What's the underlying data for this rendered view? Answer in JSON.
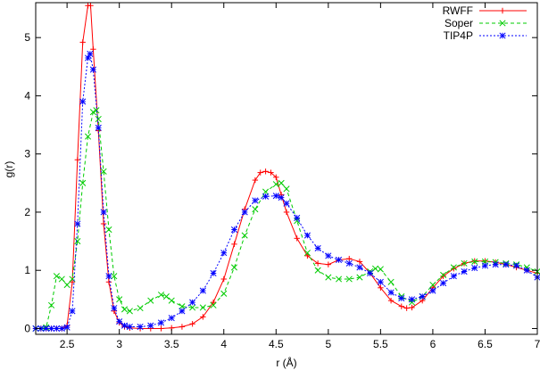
{
  "chart_data": {
    "type": "line",
    "title": "",
    "xlabel": "r (Å)",
    "ylabel": "g(r)",
    "xlim": [
      2.2,
      7.0
    ],
    "ylim": [
      -0.1,
      5.6
    ],
    "xticks": [
      "2.5",
      "3",
      "3.5",
      "4",
      "4.5",
      "5",
      "5.5",
      "6",
      "6.5",
      "7"
    ],
    "xtick_values": [
      2.5,
      3.0,
      3.5,
      4.0,
      4.5,
      5.0,
      5.5,
      6.0,
      6.5,
      7.0
    ],
    "yticks": [
      "0",
      "1",
      "2",
      "3",
      "4",
      "5"
    ],
    "ytick_values": [
      0,
      1,
      2,
      3,
      4,
      5
    ],
    "grid": false,
    "legend_position": "top-right",
    "series": [
      {
        "name": "RWFF",
        "color": "#ff0000",
        "dash": "solid",
        "marker": "plus",
        "x": [
          2.2,
          2.25,
          2.3,
          2.35,
          2.4,
          2.45,
          2.5,
          2.55,
          2.6,
          2.65,
          2.7,
          2.725,
          2.75,
          2.8,
          2.85,
          2.9,
          2.95,
          3.0,
          3.05,
          3.1,
          3.2,
          3.3,
          3.4,
          3.5,
          3.6,
          3.7,
          3.8,
          3.9,
          4.0,
          4.1,
          4.2,
          4.3,
          4.35,
          4.4,
          4.45,
          4.5,
          4.55,
          4.6,
          4.7,
          4.8,
          4.9,
          5.0,
          5.1,
          5.2,
          5.3,
          5.4,
          5.5,
          5.6,
          5.7,
          5.75,
          5.8,
          5.9,
          6.0,
          6.1,
          6.2,
          6.3,
          6.4,
          6.5,
          6.6,
          6.7,
          6.8,
          6.9,
          7.0
        ],
        "y": [
          0.0,
          0.0,
          0.0,
          0.0,
          0.0,
          0.0,
          0.05,
          0.8,
          2.9,
          4.92,
          5.55,
          5.55,
          4.8,
          3.4,
          1.8,
          0.8,
          0.3,
          0.1,
          0.03,
          0.01,
          0.0,
          0.0,
          0.0,
          0.01,
          0.03,
          0.08,
          0.2,
          0.45,
          0.85,
          1.45,
          2.05,
          2.55,
          2.68,
          2.7,
          2.68,
          2.6,
          2.3,
          2.0,
          1.55,
          1.25,
          1.12,
          1.1,
          1.18,
          1.2,
          1.15,
          0.95,
          0.7,
          0.48,
          0.38,
          0.35,
          0.36,
          0.48,
          0.7,
          0.9,
          1.03,
          1.12,
          1.16,
          1.16,
          1.14,
          1.1,
          1.05,
          1.0,
          0.95
        ]
      },
      {
        "name": "Soper",
        "color": "#00cc00",
        "dash": "dashed",
        "marker": "cross",
        "x": [
          2.2,
          2.25,
          2.3,
          2.35,
          2.4,
          2.45,
          2.5,
          2.55,
          2.6,
          2.65,
          2.7,
          2.75,
          2.78,
          2.8,
          2.85,
          2.9,
          2.95,
          3.0,
          3.05,
          3.1,
          3.2,
          3.3,
          3.4,
          3.45,
          3.5,
          3.6,
          3.7,
          3.8,
          3.9,
          4.0,
          4.1,
          4.2,
          4.3,
          4.4,
          4.5,
          4.55,
          4.6,
          4.7,
          4.8,
          4.9,
          5.0,
          5.1,
          5.2,
          5.3,
          5.4,
          5.45,
          5.5,
          5.6,
          5.7,
          5.8,
          5.9,
          6.0,
          6.1,
          6.2,
          6.3,
          6.4,
          6.5,
          6.6,
          6.7,
          6.8,
          6.9,
          7.0
        ],
        "y": [
          0.0,
          0.0,
          0.02,
          0.4,
          0.9,
          0.85,
          0.75,
          0.85,
          1.5,
          2.5,
          3.3,
          3.72,
          3.75,
          3.6,
          2.7,
          1.7,
          0.9,
          0.5,
          0.33,
          0.3,
          0.35,
          0.48,
          0.58,
          0.55,
          0.48,
          0.38,
          0.36,
          0.36,
          0.4,
          0.6,
          1.05,
          1.6,
          2.05,
          2.35,
          2.48,
          2.5,
          2.4,
          1.85,
          1.3,
          1.0,
          0.88,
          0.85,
          0.85,
          0.88,
          0.98,
          1.03,
          1.02,
          0.8,
          0.55,
          0.45,
          0.55,
          0.75,
          0.92,
          1.05,
          1.12,
          1.15,
          1.15,
          1.14,
          1.12,
          1.1,
          1.05,
          0.98
        ]
      },
      {
        "name": "TIP4P",
        "color": "#0000ff",
        "dash": "dotted",
        "marker": "star",
        "x": [
          2.2,
          2.25,
          2.3,
          2.35,
          2.4,
          2.45,
          2.5,
          2.55,
          2.6,
          2.65,
          2.7,
          2.72,
          2.75,
          2.8,
          2.85,
          2.9,
          2.95,
          3.0,
          3.05,
          3.1,
          3.2,
          3.3,
          3.4,
          3.5,
          3.6,
          3.7,
          3.8,
          3.9,
          4.0,
          4.1,
          4.2,
          4.3,
          4.4,
          4.5,
          4.55,
          4.6,
          4.7,
          4.8,
          4.9,
          5.0,
          5.1,
          5.2,
          5.3,
          5.4,
          5.5,
          5.6,
          5.7,
          5.8,
          5.9,
          6.0,
          6.1,
          6.2,
          6.3,
          6.4,
          6.5,
          6.6,
          6.7,
          6.8,
          6.9,
          7.0
        ],
        "y": [
          0.0,
          0.0,
          0.0,
          0.0,
          0.0,
          0.0,
          0.02,
          0.3,
          1.8,
          3.9,
          4.65,
          4.72,
          4.45,
          3.45,
          2.0,
          0.9,
          0.35,
          0.12,
          0.05,
          0.03,
          0.03,
          0.05,
          0.1,
          0.18,
          0.3,
          0.45,
          0.65,
          0.95,
          1.3,
          1.7,
          2.0,
          2.2,
          2.27,
          2.28,
          2.25,
          2.15,
          1.9,
          1.6,
          1.38,
          1.25,
          1.18,
          1.12,
          1.05,
          0.95,
          0.8,
          0.62,
          0.52,
          0.5,
          0.55,
          0.65,
          0.78,
          0.9,
          0.98,
          1.04,
          1.08,
          1.1,
          1.1,
          1.08,
          1.0,
          0.88
        ]
      }
    ]
  }
}
